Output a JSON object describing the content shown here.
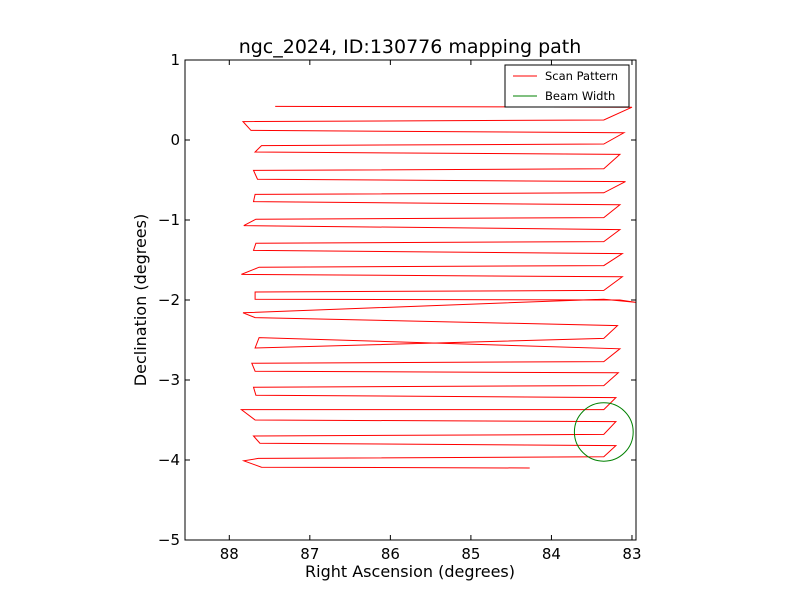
{
  "chart_data": {
    "type": "line",
    "title": "ngc_2024, ID:130776 mapping path",
    "xlabel": "Right Ascension (degrees)",
    "ylabel": "Declination (degrees)",
    "xlim": [
      88.55,
      82.95
    ],
    "ylim": [
      -5,
      1
    ],
    "xticks": [
      88,
      87,
      86,
      85,
      84,
      83
    ],
    "xtick_labels": [
      "88",
      "87",
      "86",
      "85",
      "84",
      "83"
    ],
    "yticks": [
      1,
      0,
      -1,
      -2,
      -3,
      -4,
      -5
    ],
    "ytick_labels": [
      "1",
      "0",
      "−1",
      "−2",
      "−3",
      "−4",
      "−5"
    ],
    "legend_position": "top-right",
    "series": [
      {
        "name": "Scan Pattern",
        "color": "#ff0000",
        "x": [
          87.43,
          83.0,
          83.35,
          87.83,
          87.73,
          83.1,
          83.35,
          87.6,
          87.68,
          83.15,
          83.35,
          87.7,
          87.65,
          83.08,
          83.35,
          87.68,
          87.7,
          83.15,
          83.35,
          87.67,
          87.82,
          83.15,
          83.35,
          87.67,
          87.7,
          83.12,
          83.35,
          87.63,
          87.85,
          83.12,
          83.35,
          87.68,
          87.68,
          83.15,
          82.95,
          83.35,
          87.83,
          87.68,
          83.18,
          83.35,
          87.68,
          87.63,
          83.15,
          83.35,
          87.72,
          87.68,
          83.17,
          83.35,
          87.7,
          87.67,
          83.2,
          83.35,
          87.85,
          87.68,
          83.2,
          83.35,
          87.7,
          87.62,
          83.2,
          83.35,
          87.64,
          87.82,
          87.6,
          84.27
        ],
        "y": [
          0.42,
          0.41,
          0.25,
          0.23,
          0.12,
          0.09,
          -0.05,
          -0.07,
          -0.15,
          -0.18,
          -0.36,
          -0.38,
          -0.49,
          -0.52,
          -0.66,
          -0.68,
          -0.77,
          -0.81,
          -0.97,
          -0.99,
          -1.07,
          -1.12,
          -1.27,
          -1.29,
          -1.38,
          -1.42,
          -1.57,
          -1.59,
          -1.68,
          -1.71,
          -1.88,
          -1.9,
          -1.99,
          -2.0,
          -2.03,
          -1.99,
          -2.16,
          -2.22,
          -2.32,
          -2.48,
          -2.6,
          -2.47,
          -2.61,
          -2.77,
          -2.79,
          -2.89,
          -2.91,
          -3.07,
          -3.09,
          -3.19,
          -3.22,
          -3.37,
          -3.37,
          -3.5,
          -3.52,
          -3.68,
          -3.7,
          -3.79,
          -3.82,
          -3.96,
          -3.98,
          -4.01,
          -4.09,
          -4.1
        ]
      },
      {
        "name": "Beam Width",
        "color": "#008000",
        "center": [
          83.35,
          -3.65
        ],
        "radius": 0.365
      }
    ]
  }
}
